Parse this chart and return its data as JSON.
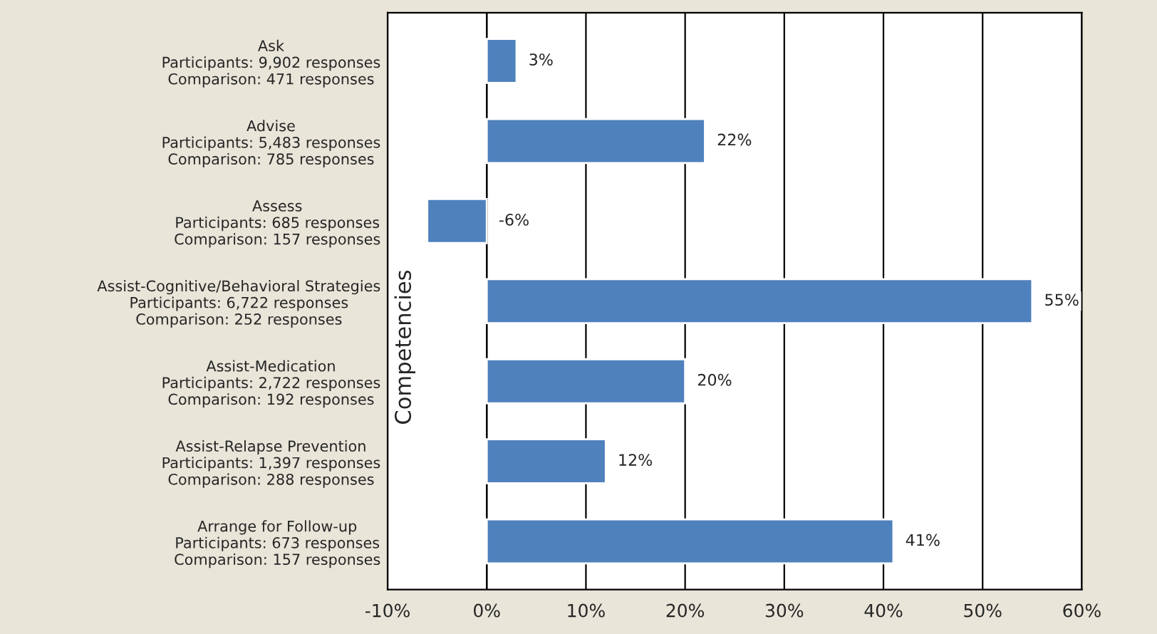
{
  "chart_data": {
    "type": "bar",
    "orientation": "horizontal",
    "ylabel": "Competencies",
    "categories": [
      "Ask\nParticipants: 9,902 responses\nComparison: 471 responses",
      "Advise\nParticipants: 5,483 responses\nComparison: 785 responses",
      "Assess\nParticipants: 685 responses\nComparison: 157 responses",
      "Assist-Cognitive/Behavioral Strategies\nParticipants: 6,722 responses\nComparison: 252 responses",
      "Assist-Medication\nParticipants: 2,722 responses\nComparison: 192 responses",
      "Assist-Relapse Prevention\nParticipants: 1,397 responses\nComparison: 288 responses",
      "Arrange for Follow-up\nParticipants: 673 responses\nComparison: 157 responses"
    ],
    "values": [
      3,
      22,
      -6,
      55,
      20,
      12,
      41
    ],
    "value_labels": [
      "3%",
      "22%",
      "-6%",
      "55%",
      "20%",
      "12%",
      "41%"
    ],
    "color": "#4f81bd",
    "xlim": [
      -10,
      60
    ],
    "xticks": [
      {
        "value": -10,
        "label": "-10%"
      },
      {
        "value": 0,
        "label": "0%"
      },
      {
        "value": 10,
        "label": "10%"
      },
      {
        "value": 20,
        "label": "20%"
      },
      {
        "value": 30,
        "label": "30%"
      },
      {
        "value": 40,
        "label": "40%"
      },
      {
        "value": 50,
        "label": "50%"
      },
      {
        "value": 60,
        "label": "60%"
      }
    ],
    "grid": "x"
  }
}
